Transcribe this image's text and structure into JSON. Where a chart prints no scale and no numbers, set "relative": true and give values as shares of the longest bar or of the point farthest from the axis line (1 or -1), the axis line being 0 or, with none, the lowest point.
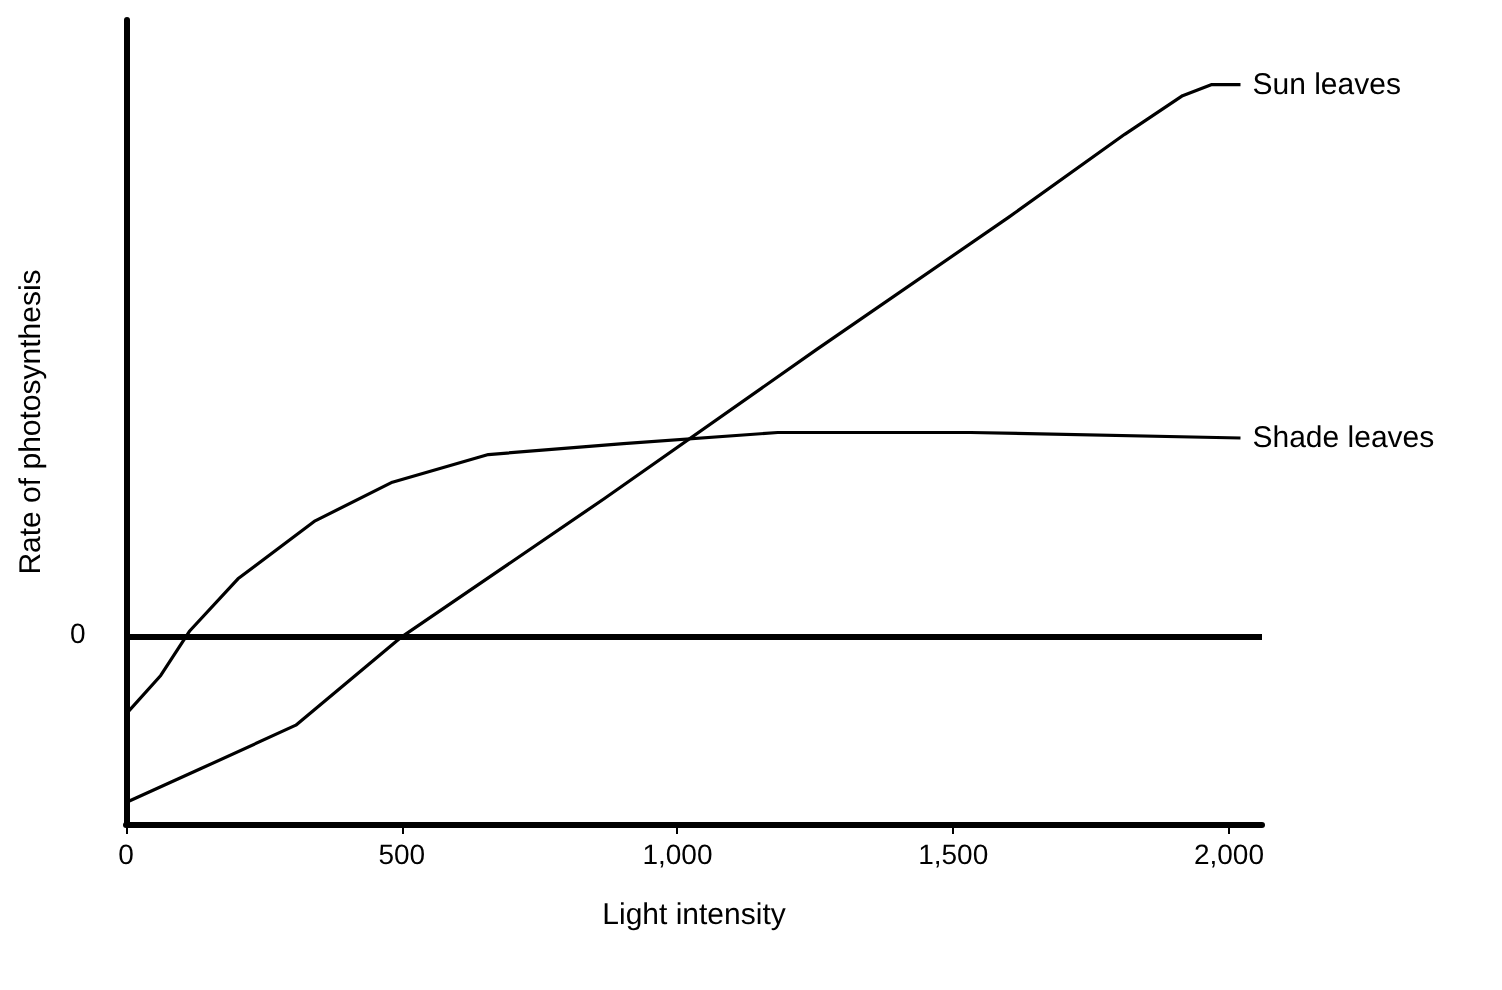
{
  "chart_data": {
    "type": "line",
    "xlabel": "Light intensity",
    "ylabel": "Rate of photosynthesis",
    "relative": true,
    "xlim": [
      0,
      2060
    ],
    "xticks": [
      0,
      {
        "value": 500,
        "label": "500"
      },
      {
        "value": 1000,
        "label": "1,000"
      },
      {
        "value": 1500,
        "label": "1,500"
      },
      {
        "value": 2000,
        "label": "2,000"
      }
    ],
    "series": [
      {
        "name": "Sun leaves",
        "color": "#000000",
        "x": [
          0,
          133,
          308,
          500,
          867,
          1252,
          1601,
          1811,
          1916,
          1969,
          2021
        ],
        "values": [
          -0.3,
          -0.24,
          -0.16,
          0,
          0.25,
          0.52,
          0.76,
          0.91,
          0.98,
          1,
          1
        ]
      },
      {
        "name": "Shade leaves",
        "color": "#000000",
        "x": [
          0,
          63,
          115,
          203,
          343,
          483,
          657,
          902,
          1182,
          1531,
          2021
        ],
        "values": [
          -0.14,
          -0.07,
          0.01,
          0.105,
          0.21,
          0.28,
          0.33,
          0.35,
          0.37,
          0.37,
          0.36
        ]
      }
    ],
    "ref_lines": [
      {
        "axis": "y",
        "value": 0,
        "label": "0",
        "color": "#000000"
      }
    ],
    "grid": false,
    "legend": false,
    "marker": "none",
    "line_style": "solid"
  }
}
